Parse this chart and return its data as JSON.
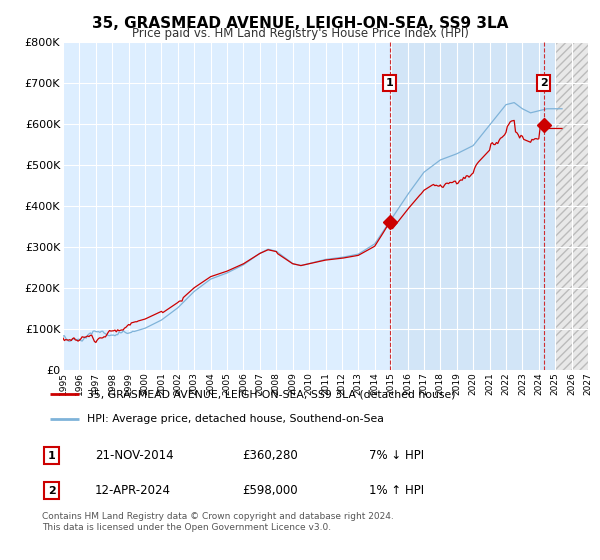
{
  "title": "35, GRASMEAD AVENUE, LEIGH-ON-SEA, SS9 3LA",
  "subtitle": "Price paid vs. HM Land Registry's House Price Index (HPI)",
  "legend_line1": "35, GRASMEAD AVENUE, LEIGH-ON-SEA, SS9 3LA (detached house)",
  "legend_line2": "HPI: Average price, detached house, Southend-on-Sea",
  "annotation1_label": "1",
  "annotation1_date": "21-NOV-2014",
  "annotation1_price": "£360,280",
  "annotation1_hpi": "7% ↓ HPI",
  "annotation2_label": "2",
  "annotation2_date": "12-APR-2024",
  "annotation2_price": "£598,000",
  "annotation2_hpi": "1% ↑ HPI",
  "footnote": "Contains HM Land Registry data © Crown copyright and database right 2024.\nThis data is licensed under the Open Government Licence v3.0.",
  "hpi_color": "#7fb3d9",
  "price_color": "#cc0000",
  "annotation_color": "#cc0000",
  "background_color": "#ddeeff",
  "chart_bg": "#ddeeff",
  "ylim": [
    0,
    800000
  ],
  "yticks": [
    0,
    100000,
    200000,
    300000,
    400000,
    500000,
    600000,
    700000,
    800000
  ],
  "ytick_labels": [
    "£0",
    "£100K",
    "£200K",
    "£300K",
    "£400K",
    "£500K",
    "£600K",
    "£700K",
    "£800K"
  ],
  "year_start": 1995,
  "year_end": 2027,
  "sale1_year": 2014.92,
  "sale1_value": 360280,
  "sale2_year": 2024.29,
  "sale2_value": 598000
}
